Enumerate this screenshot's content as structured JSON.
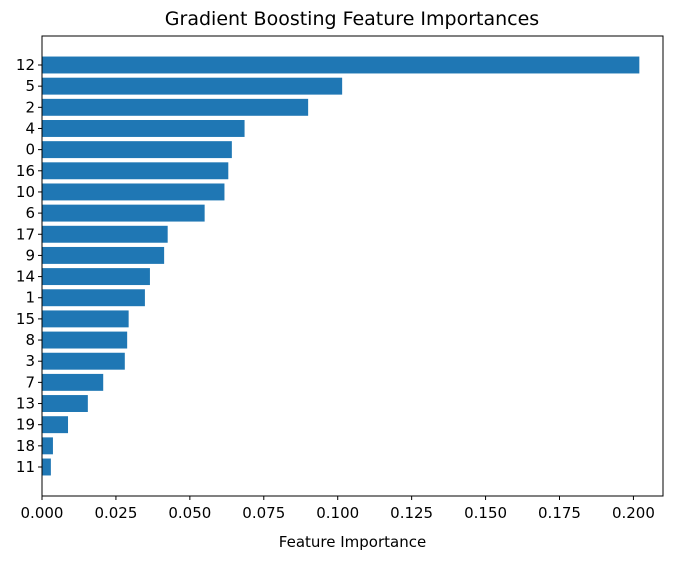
{
  "chart_data": {
    "type": "bar",
    "orientation": "horizontal",
    "title": "Gradient Boosting Feature Importances",
    "xlabel": "Feature Importance",
    "ylabel": "",
    "xlim": [
      0.0,
      0.21
    ],
    "x_ticks": [
      "0.000",
      "0.025",
      "0.050",
      "0.075",
      "0.100",
      "0.125",
      "0.150",
      "0.175",
      "0.200"
    ],
    "grid": false,
    "legend": "none",
    "bar_color": "#1f77b4",
    "categories": [
      "12",
      "5",
      "2",
      "4",
      "0",
      "16",
      "10",
      "6",
      "17",
      "9",
      "14",
      "1",
      "15",
      "8",
      "3",
      "7",
      "13",
      "19",
      "18",
      "11"
    ],
    "values": [
      0.202,
      0.1015,
      0.09,
      0.0685,
      0.0642,
      0.063,
      0.0617,
      0.055,
      0.0425,
      0.0413,
      0.0365,
      0.0348,
      0.0293,
      0.0288,
      0.028,
      0.0207,
      0.0155,
      0.0088,
      0.0037,
      0.003
    ]
  }
}
